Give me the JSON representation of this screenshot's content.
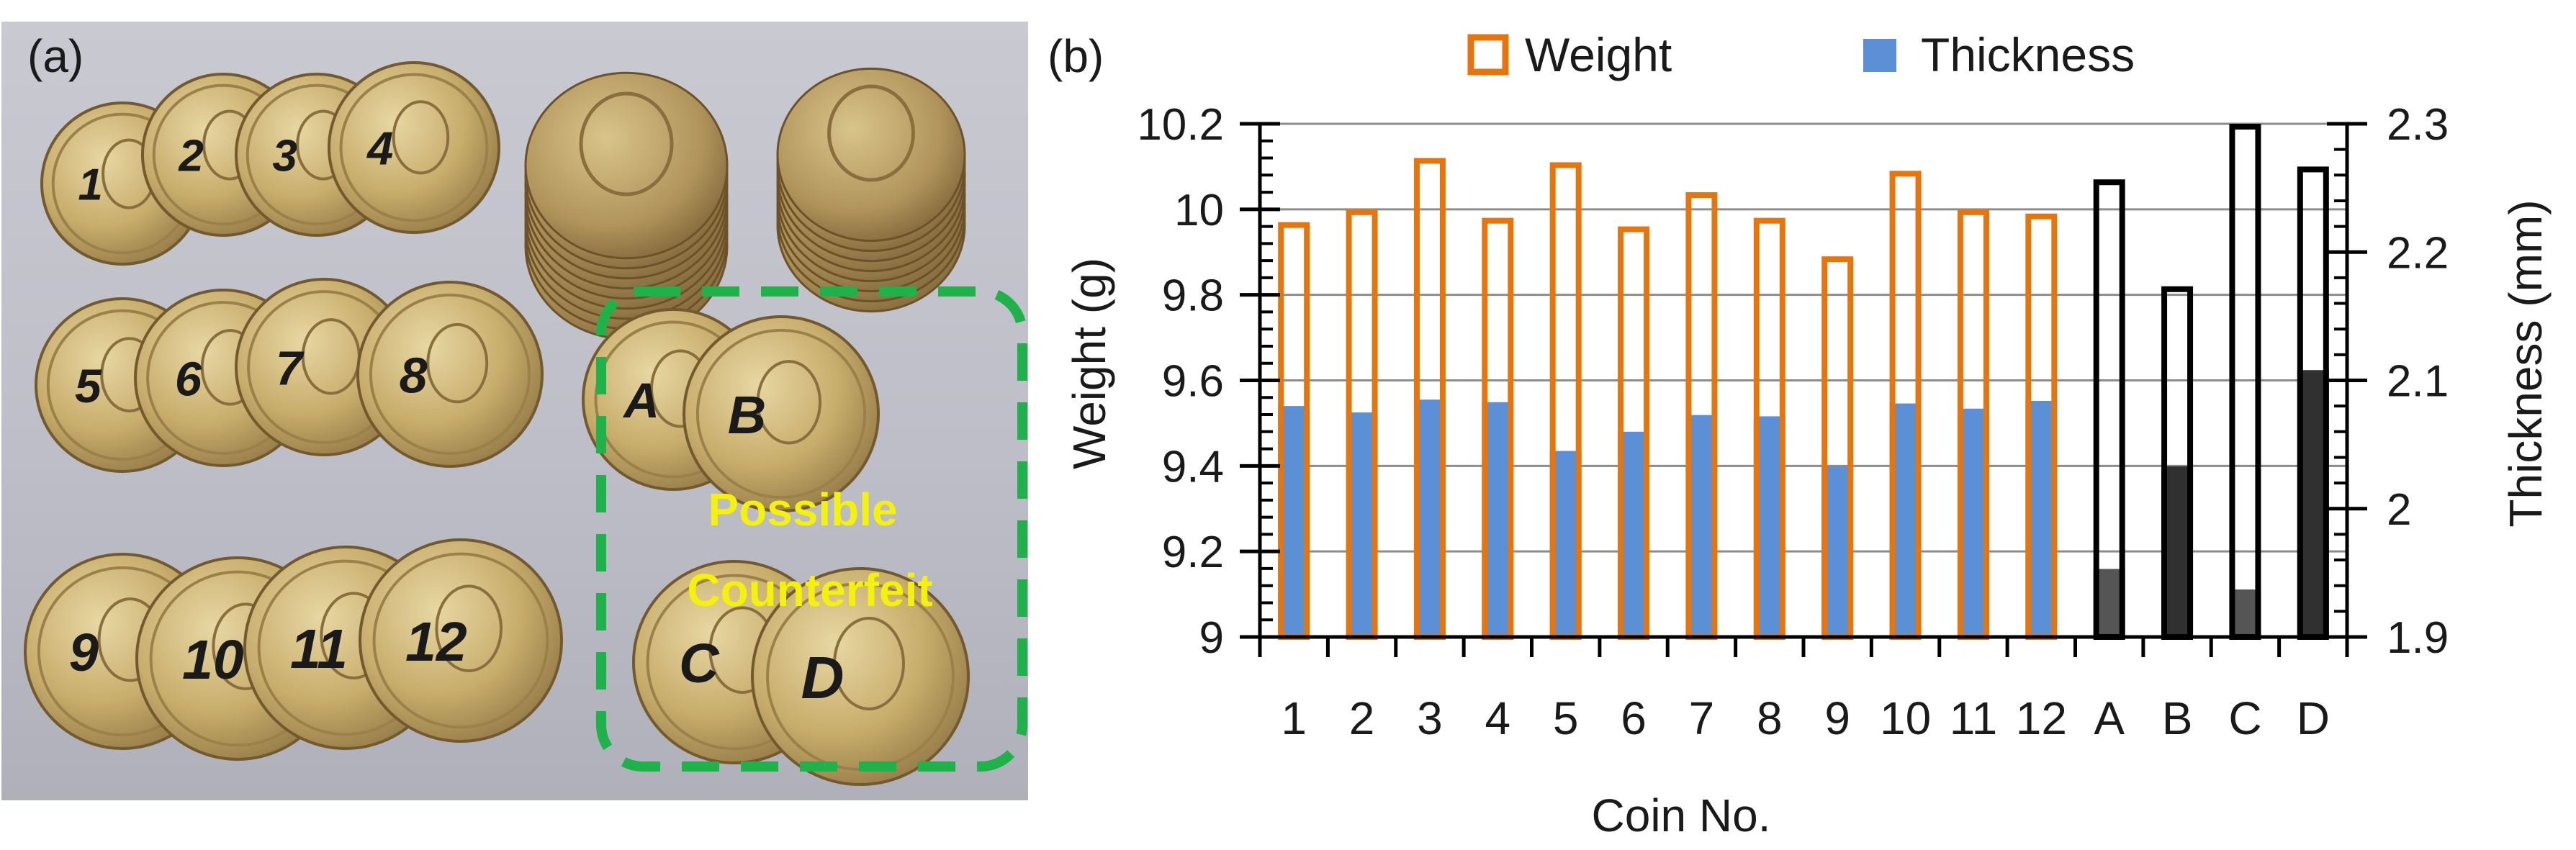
{
  "panel_a": {
    "label": "(a)",
    "coin_marks": [
      "1",
      "2",
      "3",
      "4",
      "5",
      "6",
      "7",
      "8",
      "9",
      "10",
      "11",
      "12",
      "A",
      "B",
      "C",
      "D"
    ],
    "annotation_line1": "Possible",
    "annotation_line2": "Counterfeit",
    "annotation_box_color": "#1fb24a",
    "annotation_text_color": "#f4f10a"
  },
  "panel_b": {
    "label": "(b)"
  },
  "chart_data": {
    "type": "bar",
    "categories": [
      "1",
      "2",
      "3",
      "4",
      "5",
      "6",
      "7",
      "8",
      "9",
      "10",
      "11",
      "12",
      "A",
      "B",
      "C",
      "D"
    ],
    "series": [
      {
        "name": "Weight",
        "axis": "left",
        "style": "hollow",
        "color": "#e8740c",
        "counterfeit_color": "#000000",
        "values": [
          9.97,
          10.0,
          10.12,
          9.98,
          10.11,
          9.96,
          10.04,
          9.98,
          9.89,
          10.09,
          10.0,
          9.99,
          10.07,
          9.82,
          10.2,
          10.1
        ]
      },
      {
        "name": "Thickness",
        "axis": "right",
        "style": "filled",
        "color": "#5b8fd6",
        "counterfeit_colors": [
          "#555555",
          "#303030"
        ],
        "values": [
          2.08,
          2.075,
          2.085,
          2.083,
          2.045,
          2.06,
          2.073,
          2.072,
          2.033,
          2.082,
          2.078,
          2.084,
          1.953,
          2.033,
          1.937,
          2.108
        ]
      }
    ],
    "genuine_count": 12,
    "xlabel": "Coin No.",
    "ylabel_left": "Weight (g)",
    "ylabel_right": "Thickness (mm)",
    "ylim_left": [
      9.0,
      10.2
    ],
    "ylim_right": [
      1.9,
      2.3
    ],
    "yticks_left": [
      9.0,
      9.2,
      9.4,
      9.6,
      9.8,
      10.0,
      10.2
    ],
    "ytick_labels_left": [
      "9",
      "9.2",
      "9.4",
      "9.6",
      "9.8",
      "10",
      "10.2"
    ],
    "yticks_right": [
      1.9,
      2.0,
      2.1,
      2.2,
      2.3
    ],
    "ytick_labels_right": [
      "1.9",
      "2",
      "2.1",
      "2.2",
      "2.3"
    ],
    "grid": true,
    "legend_position": "top",
    "legend": [
      "Weight",
      "Thickness"
    ]
  }
}
